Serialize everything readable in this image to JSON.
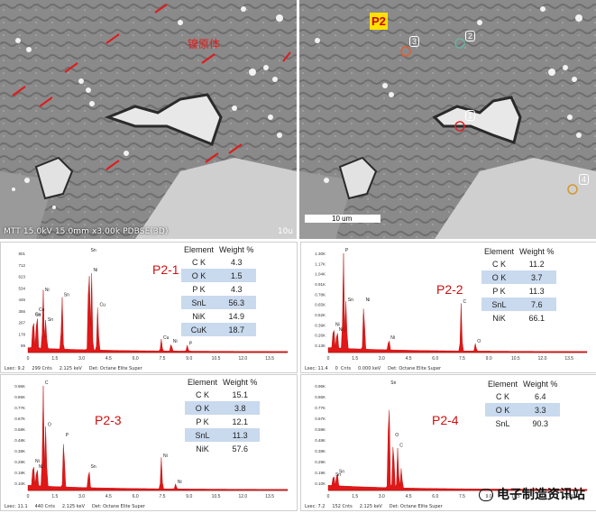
{
  "sem_left": {
    "caption": "MTT 15.0kV 15.0mm x3.00k PDBSE(3D)",
    "right_caption": "10u",
    "annotation": "镍原体"
  },
  "sem_right": {
    "badge": "P2",
    "points": [
      "1",
      "2",
      "3",
      "4"
    ],
    "scalebar": "10 um"
  },
  "spectra": [
    {
      "label": "P2-1",
      "table": {
        "h1": "Element",
        "h2": "Weight %",
        "rows": [
          [
            "C K",
            "4.3"
          ],
          [
            "O K",
            "1.5"
          ],
          [
            "P K",
            "4.3"
          ],
          [
            "SnL",
            "56.3"
          ],
          [
            "NiK",
            "14.9"
          ],
          [
            "CuK",
            "18.7"
          ]
        ]
      },
      "yticks": [
        "801",
        "712",
        "623",
        "534",
        "445",
        "356",
        "267",
        "178",
        "89"
      ],
      "xticks": [
        "0",
        "1.5",
        "3.0",
        "4.5",
        "6.0",
        "7.5",
        "9.0",
        "10.5",
        "12.0",
        "13.5"
      ],
      "peaks": [
        "Sn",
        "Cu",
        "Ni",
        "Sn",
        "Sn",
        "Sn",
        "Ni",
        "Cu",
        "Cu",
        "Ni",
        "P",
        "Cu"
      ],
      "footer": "Lsec: 9.2     299 Cnts     2.125 keV     Det: Octane Elite Super"
    },
    {
      "label": "P2-2",
      "table": {
        "h1": "Element",
        "h2": "Weight %",
        "rows": [
          [
            "C K",
            "11.2"
          ],
          [
            "O K",
            "3.7"
          ],
          [
            "P K",
            "11.3"
          ],
          [
            "SnL",
            "7.6"
          ],
          [
            "NiK",
            "66.1"
          ]
        ]
      },
      "yticks": [
        "1.30K",
        "1.17K",
        "1.04K",
        "0.91K",
        "0.78K",
        "0.65K",
        "0.52K",
        "0.39K",
        "0.26K",
        "0.13K"
      ],
      "xticks": [
        "0",
        "1.5",
        "3.0",
        "4.5",
        "6.0",
        "7.5",
        "9.0",
        "10.5",
        "12.0",
        "13.5"
      ],
      "peaks": [
        "Ni",
        "Ni",
        "P",
        "Sn",
        "Ni",
        "Ni",
        "C",
        "O"
      ],
      "footer": "Lsec: 11.4     0  Cnts     0.000 keV     Det: Octane Elite Super"
    },
    {
      "label": "P2-3",
      "table": {
        "h1": "Element",
        "h2": "Weight %",
        "rows": [
          [
            "C K",
            "15.1"
          ],
          [
            "O K",
            "3.8"
          ],
          [
            "P K",
            "12.1"
          ],
          [
            "SnL",
            "11.3"
          ],
          [
            "NiK",
            "57.6"
          ]
        ]
      },
      "yticks": [
        "0.96K",
        "0.86K",
        "0.77K",
        "0.67K",
        "0.58K",
        "0.48K",
        "0.38K",
        "0.29K",
        "0.19K",
        "0.10K"
      ],
      "xticks": [
        "0",
        "1.5",
        "3.0",
        "4.5",
        "6.0",
        "7.5",
        "9.0",
        "10.5",
        "12.0",
        "13.5"
      ],
      "peaks": [
        "Ni",
        "Ni",
        "C",
        "O",
        "P",
        "Sn",
        "Ni",
        "Ni"
      ],
      "footer": "Lsec: 11.1     440 Cnts     2.125 keV     Det: Octane Elite Super"
    },
    {
      "label": "P2-4",
      "table": {
        "h1": "Element",
        "h2": "Weight %",
        "rows": [
          [
            "C K",
            "6.4"
          ],
          [
            "O K",
            "3.3"
          ],
          [
            "SnL",
            "90.3"
          ]
        ]
      },
      "yticks": [
        "0.96K",
        "0.86K",
        "0.77K",
        "0.67K",
        "0.58K",
        "0.48K",
        "0.38K",
        "0.29K",
        "0.19K",
        "0.10K"
      ],
      "xticks": [
        "0",
        "1.5",
        "3.0",
        "4.5",
        "6.0",
        "7.5",
        "9.0",
        "10.5",
        "12.0",
        "13.5"
      ],
      "peaks": [
        "Sn",
        "Sn",
        "Sn",
        "O",
        "C"
      ],
      "footer": "Lsec: 7.2     152 Cnts     2.125 keV     Det: Octane Elite Super"
    }
  ],
  "watermark": "电子制造资讯站"
}
